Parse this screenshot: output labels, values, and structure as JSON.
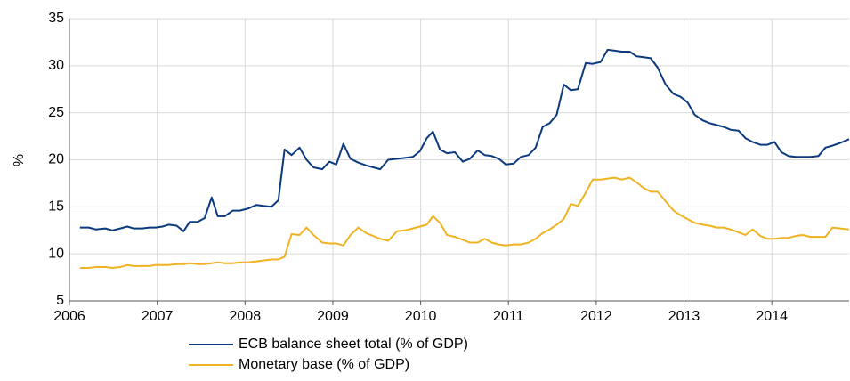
{
  "chart_data": {
    "type": "line",
    "y_label": "%",
    "x": [
      2006.12,
      2006.22,
      2006.3,
      2006.41,
      2006.49,
      2006.58,
      2006.66,
      2006.73,
      2006.83,
      2006.91,
      2006.98,
      2007.06,
      2007.13,
      2007.22,
      2007.3,
      2007.37,
      2007.46,
      2007.54,
      2007.62,
      2007.69,
      2007.77,
      2007.86,
      2007.94,
      2008.03,
      2008.13,
      2008.21,
      2008.3,
      2008.38,
      2008.45,
      2008.53,
      2008.62,
      2008.7,
      2008.78,
      2008.88,
      2008.96,
      2009.04,
      2009.12,
      2009.2,
      2009.29,
      2009.38,
      2009.46,
      2009.54,
      2009.63,
      2009.73,
      2009.82,
      2009.91,
      2009.99,
      2010.07,
      2010.14,
      2010.22,
      2010.3,
      2010.39,
      2010.48,
      2010.56,
      2010.65,
      2010.73,
      2010.81,
      2010.89,
      2010.97,
      2011.06,
      2011.14,
      2011.23,
      2011.31,
      2011.39,
      2011.47,
      2011.55,
      2011.63,
      2011.71,
      2011.79,
      2011.88,
      2011.96,
      2012.05,
      2012.13,
      2012.21,
      2012.29,
      2012.38,
      2012.46,
      2012.54,
      2012.62,
      2012.7,
      2012.79,
      2012.88,
      2012.96,
      2013.04,
      2013.12,
      2013.21,
      2013.29,
      2013.37,
      2013.45,
      2013.53,
      2013.62,
      2013.7,
      2013.78,
      2013.87,
      2013.95,
      2014.03,
      2014.11,
      2014.19,
      2014.27,
      2014.35,
      2014.44,
      2014.53,
      2014.61,
      2014.69,
      2014.78,
      2014.88
    ],
    "series": [
      {
        "name": "ECB balance sheet total (% of GDP)",
        "color": "#0b3a7e",
        "values": [
          12.8,
          12.8,
          12.6,
          12.7,
          12.5,
          12.7,
          12.9,
          12.7,
          12.7,
          12.8,
          12.8,
          12.9,
          13.1,
          13.0,
          12.4,
          13.4,
          13.4,
          13.8,
          16.0,
          14.0,
          14.0,
          14.6,
          14.6,
          14.8,
          15.2,
          15.1,
          15.0,
          15.7,
          21.1,
          20.5,
          21.3,
          20.0,
          19.2,
          19.0,
          19.8,
          19.5,
          21.7,
          20.1,
          19.7,
          19.4,
          19.2,
          19.0,
          20.0,
          20.1,
          20.2,
          20.3,
          20.9,
          22.3,
          23.0,
          21.1,
          20.7,
          20.8,
          19.8,
          20.1,
          21.0,
          20.5,
          20.4,
          20.1,
          19.5,
          19.6,
          20.3,
          20.5,
          21.3,
          23.5,
          23.9,
          24.8,
          28.0,
          27.4,
          27.5,
          30.3,
          30.2,
          30.4,
          31.7,
          31.6,
          31.5,
          31.5,
          31.0,
          30.9,
          30.8,
          29.8,
          28.0,
          27.0,
          26.7,
          26.1,
          24.8,
          24.2,
          23.9,
          23.7,
          23.5,
          23.2,
          23.1,
          22.3,
          21.9,
          21.6,
          21.6,
          21.9,
          20.8,
          20.4,
          20.3,
          20.3,
          20.3,
          20.4,
          21.3,
          21.5,
          21.8,
          22.2
        ]
      },
      {
        "name": "Monetary base (% of GDP)",
        "color": "#f0b323",
        "values": [
          8.5,
          8.5,
          8.6,
          8.6,
          8.5,
          8.6,
          8.8,
          8.7,
          8.7,
          8.7,
          8.8,
          8.8,
          8.8,
          8.9,
          8.9,
          9.0,
          8.9,
          8.9,
          9.0,
          9.1,
          9.0,
          9.0,
          9.1,
          9.1,
          9.2,
          9.3,
          9.4,
          9.4,
          9.7,
          12.1,
          12.0,
          12.8,
          12.0,
          11.2,
          11.1,
          11.1,
          10.9,
          12.0,
          12.8,
          12.2,
          11.9,
          11.6,
          11.4,
          12.4,
          12.5,
          12.7,
          12.9,
          13.1,
          14.0,
          13.3,
          12.0,
          11.8,
          11.5,
          11.2,
          11.2,
          11.6,
          11.2,
          11.0,
          10.9,
          11.0,
          11.0,
          11.2,
          11.6,
          12.2,
          12.6,
          13.1,
          13.7,
          15.3,
          15.1,
          16.5,
          17.9,
          17.9,
          18.0,
          18.1,
          17.9,
          18.1,
          17.6,
          17.0,
          16.6,
          16.6,
          15.6,
          14.6,
          14.1,
          13.7,
          13.3,
          13.1,
          13.0,
          12.8,
          12.8,
          12.6,
          12.3,
          12.0,
          12.6,
          11.9,
          11.6,
          11.6,
          11.7,
          11.7,
          11.9,
          12.0,
          11.8,
          11.8,
          11.8,
          12.8,
          12.7,
          12.6
        ]
      }
    ],
    "xlim": [
      2006,
      2014.88
    ],
    "xticks": [
      2006,
      2007,
      2008,
      2009,
      2010,
      2011,
      2012,
      2013,
      2014
    ],
    "ylim": [
      5,
      35
    ],
    "yticks": [
      5,
      10,
      15,
      20,
      25,
      30,
      35
    ],
    "grid": true,
    "legend": "bottom"
  }
}
